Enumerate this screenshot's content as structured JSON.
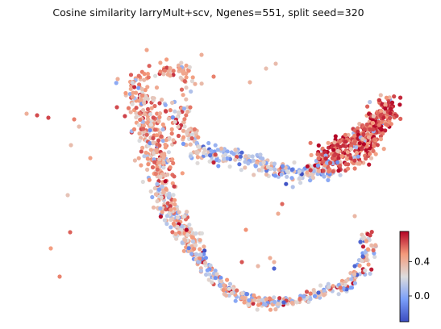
{
  "chart_data": {
    "type": "scatter",
    "title": "Cosine similarity larryMult+scv, Ngenes=551, split seed=320",
    "xlabel": "",
    "ylabel": "",
    "axes_visible": false,
    "grid": false,
    "colormap": "coolwarm",
    "colorbar": {
      "range": [
        -0.3,
        0.75
      ],
      "ticks": [
        0.0,
        0.4
      ],
      "tick_labels": [
        "0.0",
        "0.4"
      ],
      "placement": "right"
    },
    "color_low": "#3b4cc0",
    "color_mid": "#dddddd",
    "color_high": "#b40426",
    "n_points": 1800
  }
}
